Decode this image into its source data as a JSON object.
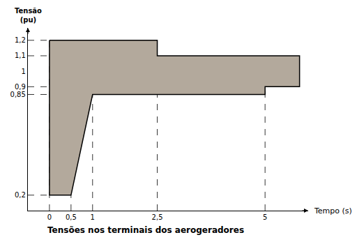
{
  "chart_data": {
    "type": "area",
    "title": "Tensões nos terminais dos aerogeradores",
    "x_label": "Tempo (s)",
    "y_label": "Tensão (pu)",
    "series": [
      {
        "x": [
          0,
          2.5,
          2.5,
          5.8
        ],
        "values": [
          1.2,
          1.2,
          1.1,
          1.1
        ]
      },
      {
        "x": [
          0,
          0.5,
          1,
          5,
          5,
          5.8
        ],
        "values": [
          0.2,
          0.2,
          0.85,
          0.85,
          0.9,
          0.9
        ]
      }
    ],
    "color": "#b3a99c",
    "xlim": [
      -0.5,
      6
    ],
    "ylim": [
      0.1,
      1.28
    ],
    "xticks": [
      0,
      {
        "value": 0.5,
        "label": "0,5"
      },
      1,
      {
        "value": 2.5,
        "label": "2,5"
      },
      5
    ],
    "yticks": [
      {
        "value": 0.2,
        "label": "0,2"
      },
      {
        "value": 0.85,
        "label": "0,85"
      },
      {
        "value": 0.9,
        "label": "0,9"
      },
      1,
      {
        "value": 1.1,
        "label": "1,1"
      },
      {
        "value": 1.2,
        "label": "1,2"
      }
    ],
    "grid": false
  }
}
